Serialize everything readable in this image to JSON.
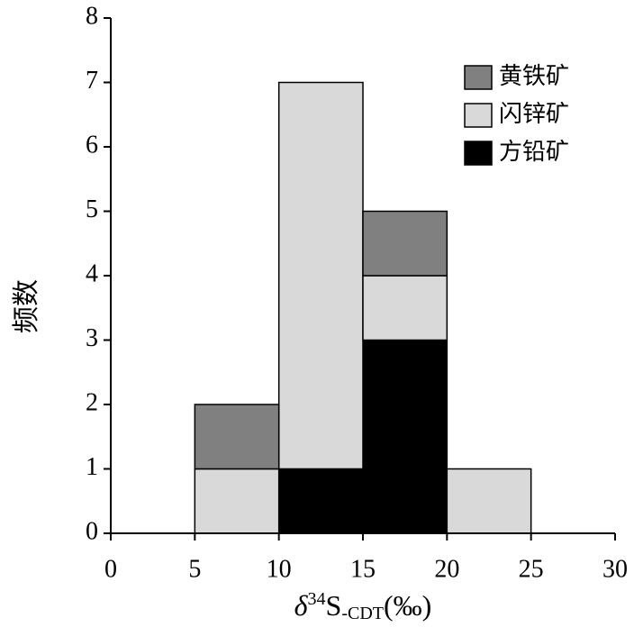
{
  "chart_data": {
    "type": "histogram",
    "xlabel": {
      "prefix": "δ",
      "sup": "34",
      "main": "S",
      "sub": "-CDT",
      "suffix": "(‰)"
    },
    "ylabel": "频数",
    "bins": [
      0,
      5,
      10,
      15,
      20,
      25,
      30
    ],
    "stacked": true,
    "series": [
      {
        "name": "方铅矿",
        "color": "#000000",
        "values": [
          0,
          0,
          1,
          3,
          0,
          0
        ]
      },
      {
        "name": "闪锌矿",
        "color": "#d9d9d9",
        "values": [
          0,
          1,
          6,
          1,
          1,
          0
        ]
      },
      {
        "name": "黄铁矿",
        "color": "#808080",
        "values": [
          0,
          1,
          0,
          1,
          0,
          0
        ]
      }
    ],
    "legend_order": [
      2,
      1,
      0
    ],
    "legend": "upper right",
    "xlim": [
      0,
      30
    ],
    "xticks": [
      0,
      5,
      10,
      15,
      20,
      25,
      30
    ],
    "ylim": [
      0,
      8
    ],
    "yticks": [
      0,
      1,
      2,
      3,
      4,
      5,
      6,
      7,
      8
    ]
  }
}
